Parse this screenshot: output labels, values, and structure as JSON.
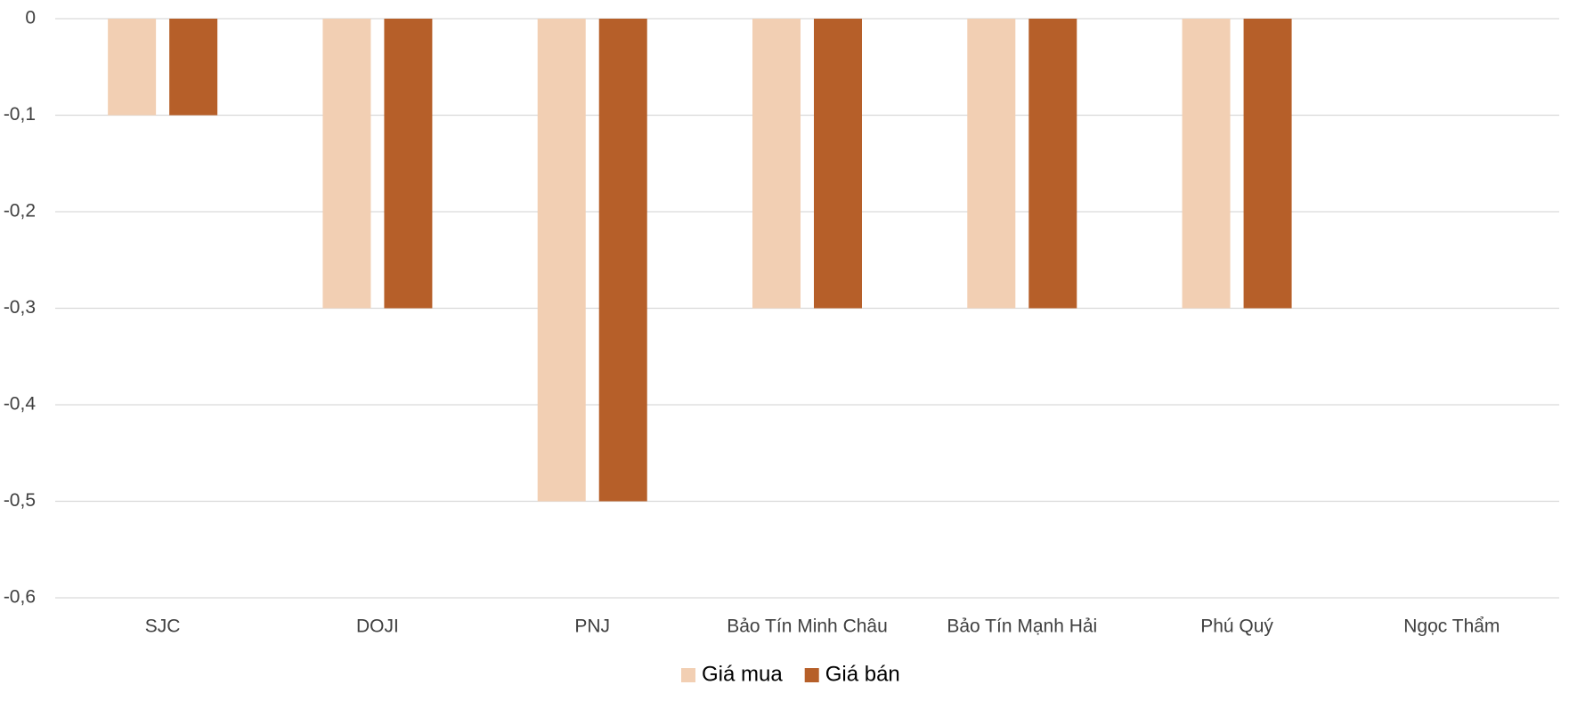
{
  "chart_data": {
    "type": "bar",
    "categories": [
      "SJC",
      "DOJI",
      "PNJ",
      "Bảo Tín Minh Châu",
      "Bảo Tín Mạnh Hải",
      "Phú Quý",
      "Ngọc Thẩm"
    ],
    "series": [
      {
        "name": "Giá mua",
        "color": "#F2CFB3",
        "values": [
          -0.1,
          -0.3,
          -0.5,
          -0.3,
          -0.3,
          -0.3,
          0
        ]
      },
      {
        "name": "Giá bán",
        "color": "#B65F29",
        "values": [
          -0.1,
          -0.3,
          -0.5,
          -0.3,
          -0.3,
          -0.3,
          0
        ]
      }
    ],
    "ylim": [
      -0.6,
      0
    ],
    "yticks": [
      0,
      {
        "value": -0.1,
        "label": "-0,1"
      },
      {
        "value": -0.2,
        "label": "-0,2"
      },
      {
        "value": -0.3,
        "label": "-0,3"
      },
      {
        "value": -0.4,
        "label": "-0,4"
      },
      {
        "value": -0.5,
        "label": "-0,5"
      },
      {
        "value": -0.6,
        "label": "-0,6"
      }
    ],
    "grid": true,
    "legend": "bottom"
  }
}
